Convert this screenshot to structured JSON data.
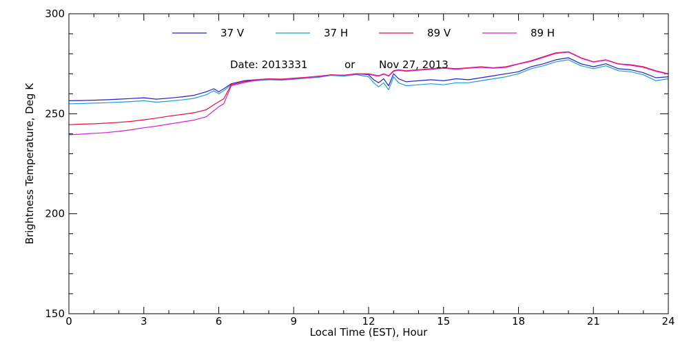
{
  "chart_data": {
    "type": "line",
    "xlabel": "Local Time (EST), Hour",
    "ylabel": "Brightness Temperature, Deg K",
    "xlim": [
      0,
      24
    ],
    "ylim": [
      150,
      300
    ],
    "x_ticks": [
      0,
      3,
      6,
      9,
      12,
      15,
      18,
      21,
      24
    ],
    "y_ticks": [
      150,
      200,
      250,
      300
    ],
    "grid": false,
    "legend_position": "top",
    "annotation": {
      "date_label": "Date: 2013331",
      "or_label": "or",
      "date_text": "Nov 27, 2013"
    },
    "x": [
      0,
      0.5,
      1,
      1.5,
      2,
      2.5,
      3,
      3.5,
      4,
      4.5,
      5,
      5.5,
      5.8,
      6,
      6.2,
      6.5,
      7,
      7.5,
      8,
      8.5,
      9,
      9.5,
      10,
      10.5,
      11,
      11.5,
      12,
      12.2,
      12.4,
      12.6,
      12.8,
      13,
      13.2,
      13.5,
      14,
      14.5,
      15,
      15.5,
      16,
      16.5,
      17,
      17.5,
      18,
      18.5,
      19,
      19.5,
      20,
      20.5,
      21,
      21.5,
      22,
      22.5,
      23,
      23.5,
      24
    ],
    "series": [
      {
        "name": "37 V",
        "color": "#1f1fcf",
        "values": [
          256.5,
          256.6,
          256.8,
          257.0,
          257.3,
          257.6,
          258.0,
          257.3,
          257.8,
          258.4,
          259.2,
          261.0,
          262.5,
          261.0,
          262.5,
          265.0,
          266.5,
          267.0,
          267.5,
          267.0,
          267.5,
          268.0,
          268.5,
          269.5,
          269.0,
          270.0,
          269.5,
          267.0,
          265.5,
          267.5,
          264.0,
          270.0,
          267.5,
          266.0,
          266.5,
          267.0,
          266.5,
          267.5,
          267.0,
          268.0,
          269.0,
          270.0,
          271.0,
          273.5,
          275.0,
          277.0,
          278.0,
          275.0,
          273.5,
          275.0,
          272.5,
          272.0,
          270.5,
          268.0,
          268.5
        ]
      },
      {
        "name": "37 H",
        "color": "#1a9fd4",
        "values": [
          255.0,
          255.1,
          255.3,
          255.5,
          255.8,
          256.1,
          256.5,
          255.8,
          256.3,
          256.9,
          257.7,
          259.5,
          261.5,
          260.0,
          261.5,
          264.5,
          266.0,
          266.5,
          267.0,
          266.8,
          267.2,
          267.8,
          268.2,
          269.2,
          268.8,
          269.6,
          268.5,
          265.5,
          263.5,
          265.5,
          262.0,
          268.5,
          265.5,
          264.0,
          264.5,
          265.0,
          264.5,
          265.5,
          265.5,
          266.5,
          267.5,
          268.5,
          270.0,
          272.5,
          274.0,
          276.0,
          277.0,
          274.0,
          272.5,
          274.0,
          271.5,
          271.0,
          269.5,
          266.5,
          267.5
        ]
      },
      {
        "name": "89 V",
        "color": "#e8102c",
        "values": [
          244.5,
          244.8,
          245.0,
          245.3,
          245.7,
          246.2,
          247.0,
          247.8,
          248.8,
          249.6,
          250.5,
          252.0,
          254.5,
          256.0,
          257.5,
          264.5,
          266.0,
          267.0,
          267.5,
          267.3,
          267.8,
          268.2,
          268.8,
          269.5,
          269.3,
          270.0,
          270.0,
          269.5,
          269.0,
          270.0,
          269.0,
          271.5,
          272.0,
          271.5,
          272.0,
          272.5,
          273.0,
          272.5,
          273.0,
          273.5,
          273.0,
          273.5,
          275.0,
          276.5,
          278.5,
          280.5,
          281.0,
          278.0,
          276.0,
          277.0,
          275.0,
          274.5,
          273.5,
          271.5,
          270.0
        ]
      },
      {
        "name": "89 H",
        "color": "#d81cd8",
        "values": [
          239.5,
          239.8,
          240.2,
          240.6,
          241.2,
          242.0,
          243.0,
          243.8,
          244.8,
          245.8,
          246.8,
          248.5,
          251.5,
          253.5,
          255.0,
          264.0,
          265.5,
          266.8,
          267.3,
          267.0,
          267.6,
          268.0,
          268.6,
          269.3,
          269.2,
          269.8,
          269.8,
          269.2,
          268.8,
          269.8,
          268.8,
          271.2,
          271.8,
          271.2,
          271.8,
          272.2,
          272.8,
          272.2,
          272.8,
          273.2,
          272.8,
          273.2,
          274.8,
          276.2,
          278.2,
          280.2,
          280.8,
          277.8,
          275.8,
          276.8,
          274.8,
          274.2,
          273.2,
          271.2,
          269.8
        ]
      }
    ]
  }
}
